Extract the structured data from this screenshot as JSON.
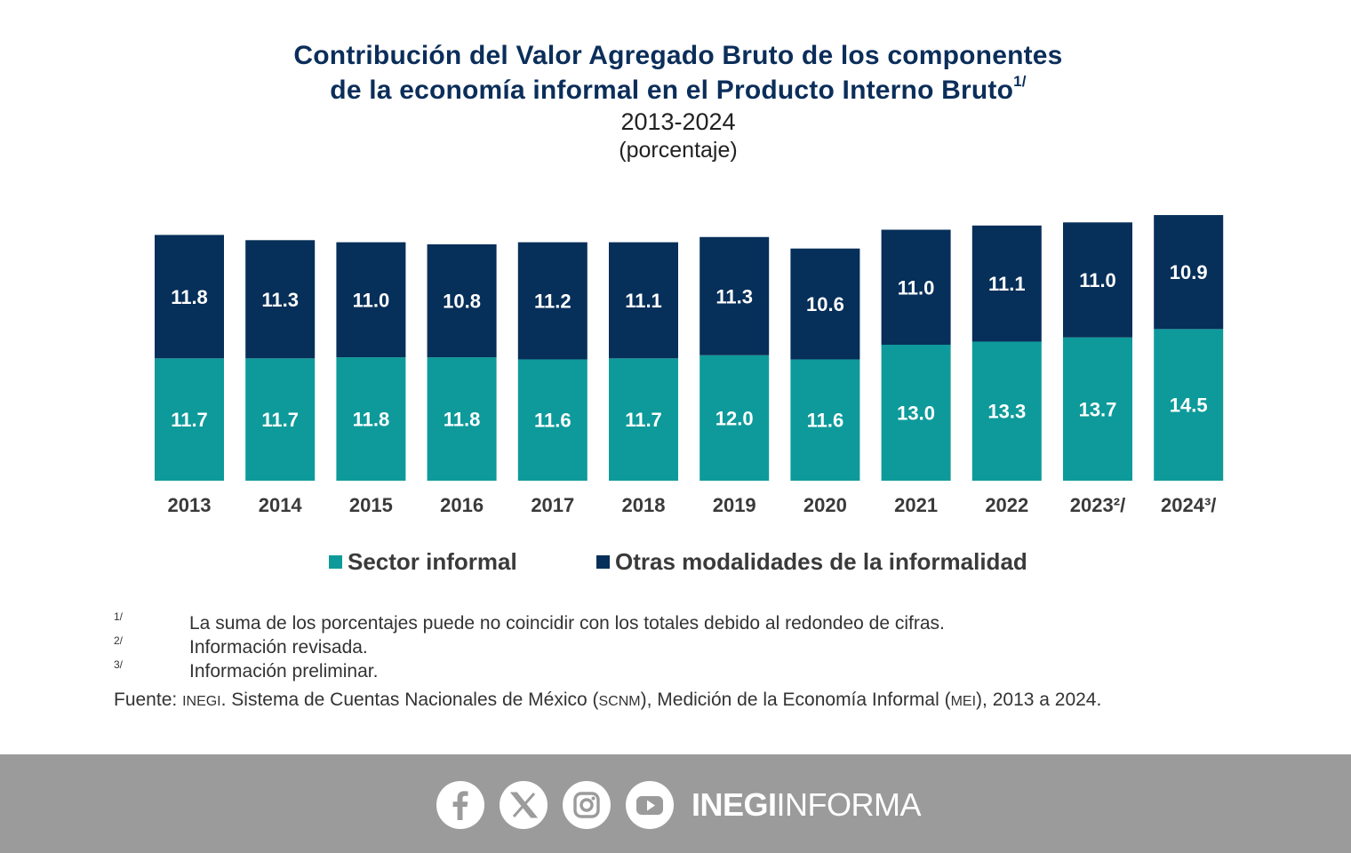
{
  "title_line1": "Contribución del Valor Agregado Bruto de los componentes",
  "title_line2": "de la economía informal en el Producto Interno Bruto",
  "title_note": "1/",
  "period": "2013-2024",
  "unit": "(porcentaje)",
  "chart_data": {
    "type": "bar",
    "stacked": true,
    "categories": [
      "2013",
      "2014",
      "2015",
      "2016",
      "2017",
      "2018",
      "2019",
      "2020",
      "2021",
      "2022",
      "2023²/",
      "2024³/"
    ],
    "series": [
      {
        "name": "Sector informal",
        "color": "#0e9a9a",
        "values": [
          11.7,
          11.7,
          11.8,
          11.8,
          11.6,
          11.7,
          12.0,
          11.6,
          13.0,
          13.3,
          13.7,
          14.5
        ]
      },
      {
        "name": "Otras modalidades de la informalidad",
        "color": "#062f59",
        "values": [
          11.8,
          11.3,
          11.0,
          10.8,
          11.2,
          11.1,
          11.3,
          10.6,
          11.0,
          11.1,
          11.0,
          10.9
        ]
      }
    ],
    "data_labels": true,
    "legend_position": "bottom",
    "grid": false
  },
  "footnotes": [
    {
      "mark": "1/",
      "text": "La suma de los porcentajes puede no coincidir con los totales debido al redondeo de cifras."
    },
    {
      "mark": "2/",
      "text": "Información revisada."
    },
    {
      "mark": "3/",
      "text": "Información preliminar."
    }
  ],
  "source": {
    "label": "Fuente:",
    "org": "INEGI",
    "text1": ". Sistema de Cuentas Nacionales de México (",
    "abbr1": "SCNM",
    "text2": "), Medición de la Economía Informal (",
    "abbr2": "MEI",
    "text3": "), 2013 a 2024."
  },
  "footer": {
    "brand_bold": "INEGI",
    "brand_light": "INFORMA",
    "icons": [
      "facebook-icon",
      "x-icon",
      "instagram-icon",
      "youtube-icon"
    ],
    "background": "#9b9b9b"
  }
}
